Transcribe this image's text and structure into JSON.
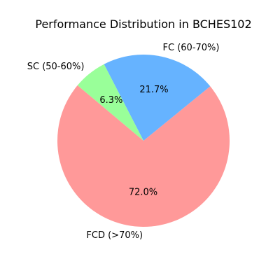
{
  "chart_data": {
    "type": "pie",
    "title": "Performance Distribution in BCHES102",
    "categories": [
      "FCD (>70%)",
      "FC (60-70%)",
      "SC (50-60%)"
    ],
    "values": [
      72.0,
      21.7,
      6.3
    ],
    "value_labels": [
      "72.0%",
      "21.7%",
      "6.3%"
    ],
    "colors": [
      "#ff9999",
      "#66b3ff",
      "#99ff99"
    ],
    "start_angle_deg": 140,
    "direction": "counterclockwise",
    "legend": "none"
  }
}
